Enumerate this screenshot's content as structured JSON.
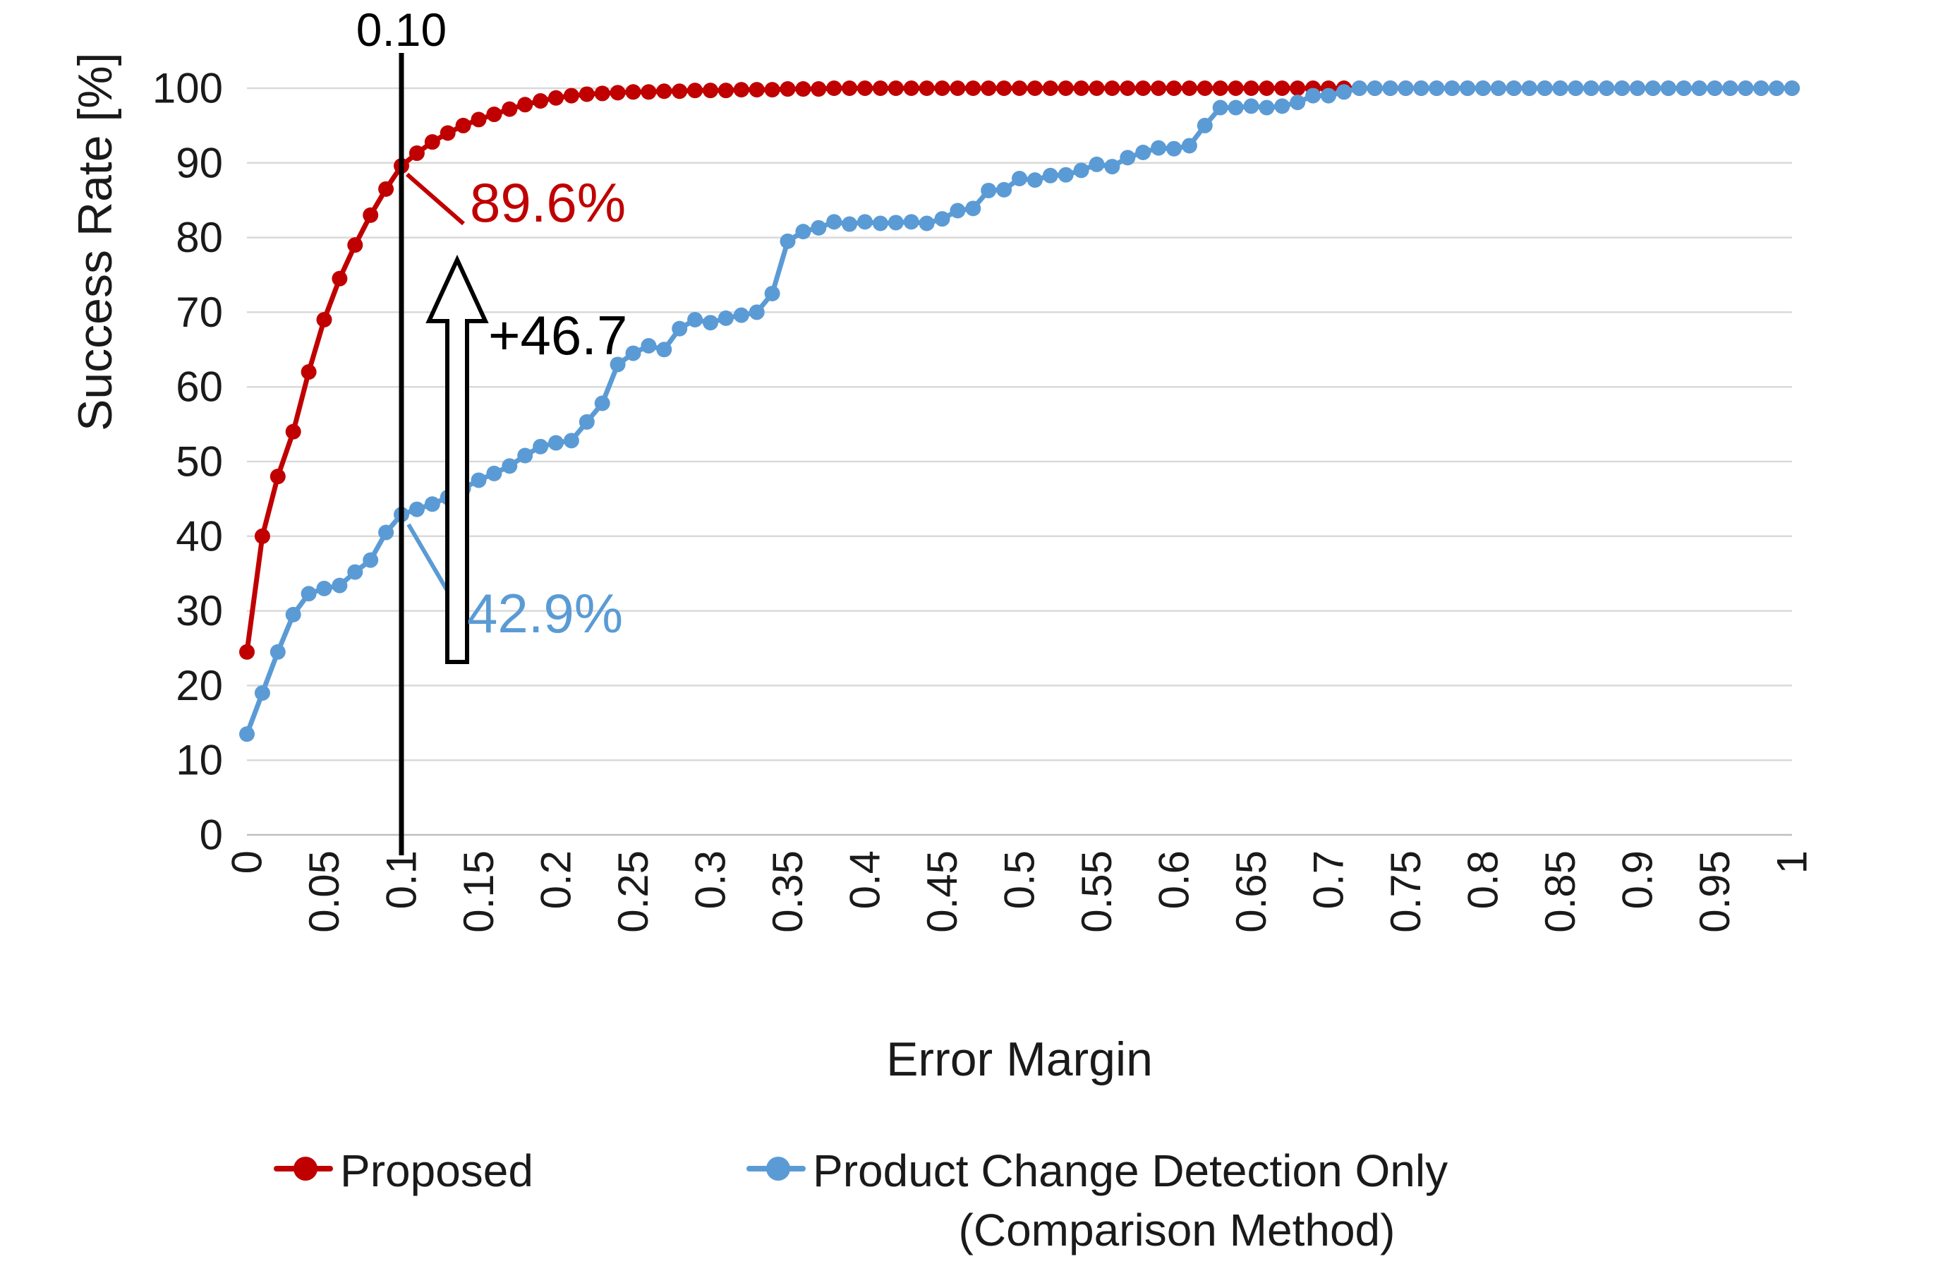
{
  "colors": {
    "proposed": "#C00000",
    "comparison": "#5B9BD5",
    "grid": "#D9D9D9",
    "axis_line": "#BFBFBF",
    "reference_line": "#000000",
    "text": "#1a1a1a"
  },
  "axes": {
    "x_title": "Error Margin",
    "y_title": "Success Rate [%]"
  },
  "annotations": {
    "ref_line_label": "0.10",
    "proposed_value": "89.6%",
    "difference": "+46.7",
    "comparison_value": "42.9%"
  },
  "legend": {
    "proposed": "Proposed",
    "comparison_line1": "Product Change Detection Only",
    "comparison_line2": "(Comparison Method)"
  },
  "chart_data": {
    "type": "line",
    "title": "",
    "xlabel": "Error Margin",
    "ylabel": "Success Rate [%]",
    "xlim": [
      0,
      1
    ],
    "ylim": [
      0,
      100
    ],
    "grid": "horizontal",
    "legend_position": "bottom",
    "x_tick_labels": [
      "0",
      "0.05",
      "0.1",
      "0.15",
      "0.2",
      "0.25",
      "0.3",
      "0.35",
      "0.4",
      "0.45",
      "0.5",
      "0.55",
      "0.6",
      "0.65",
      "0.7",
      "0.75",
      "0.8",
      "0.85",
      "0.9",
      "0.95",
      "1"
    ],
    "x_tick_values": [
      0,
      0.05,
      0.1,
      0.15,
      0.2,
      0.25,
      0.3,
      0.35,
      0.4,
      0.45,
      0.5,
      0.55,
      0.6,
      0.65,
      0.7,
      0.75,
      0.8,
      0.85,
      0.9,
      0.95,
      1
    ],
    "y_ticks": [
      0,
      10,
      20,
      30,
      40,
      50,
      60,
      70,
      80,
      90,
      100
    ],
    "x_start": 0,
    "x_step": 0.01,
    "reference_line": {
      "x": 0.1,
      "label": "0.10"
    },
    "callouts": [
      {
        "text": "89.6%",
        "series": "Proposed",
        "x": 0.1
      },
      {
        "text": "+46.7",
        "meaning": "difference between series at x=0.1"
      },
      {
        "text": "42.9%",
        "series": "Product Change Detection Only (Comparison Method)",
        "x": 0.1
      }
    ],
    "series": [
      {
        "name": "Proposed",
        "color": "#C00000",
        "values": [
          24.5,
          40,
          48,
          54,
          62,
          69,
          74.5,
          79,
          83,
          86.5,
          89.6,
          91.3,
          92.8,
          94,
          95,
          95.8,
          96.5,
          97.2,
          97.8,
          98.3,
          98.7,
          99,
          99.2,
          99.3,
          99.4,
          99.5,
          99.5,
          99.6,
          99.6,
          99.7,
          99.7,
          99.7,
          99.8,
          99.8,
          99.8,
          99.9,
          99.9,
          99.9,
          100,
          100,
          100,
          100,
          100,
          100,
          100,
          100,
          100,
          100,
          100,
          100,
          100,
          100,
          100,
          100,
          100,
          100,
          100,
          100,
          100,
          100,
          100,
          100,
          100,
          100,
          100,
          100,
          100,
          100,
          100,
          100,
          100,
          100,
          100,
          100,
          100,
          100,
          100,
          100,
          100,
          100,
          100,
          100,
          100,
          100,
          100,
          100,
          100,
          100,
          100,
          100,
          100,
          100,
          100,
          100,
          100,
          100,
          100,
          100,
          100,
          100,
          100
        ]
      },
      {
        "name": "Product Change Detection Only (Comparison Method)",
        "color": "#5B9BD5",
        "values": [
          13.5,
          19,
          24.5,
          29.5,
          32.3,
          33,
          33.4,
          35.2,
          36.8,
          40.5,
          42.9,
          43.6,
          44.3,
          45.2,
          46.4,
          47.5,
          48.4,
          49.4,
          50.8,
          52,
          52.5,
          52.8,
          55.3,
          57.8,
          63,
          64.5,
          65.5,
          65,
          67.8,
          69,
          68.6,
          69.2,
          69.6,
          70,
          72.5,
          79.5,
          80.8,
          81.3,
          82.1,
          81.8,
          82.1,
          81.9,
          82,
          82.1,
          81.9,
          82.5,
          83.6,
          83.9,
          86.3,
          86.4,
          87.9,
          87.7,
          88.3,
          88.4,
          89,
          89.8,
          89.5,
          90.7,
          91.4,
          92,
          91.9,
          92.3,
          95,
          97.4,
          97.4,
          97.6,
          97.4,
          97.6,
          98.1,
          99,
          99,
          99.5,
          100,
          100,
          100,
          100,
          100,
          100,
          100,
          100,
          100,
          100,
          100,
          100,
          100,
          100,
          100,
          100,
          100,
          100,
          100,
          100,
          100,
          100,
          100,
          100,
          100,
          100,
          100,
          100,
          100
        ]
      }
    ]
  }
}
